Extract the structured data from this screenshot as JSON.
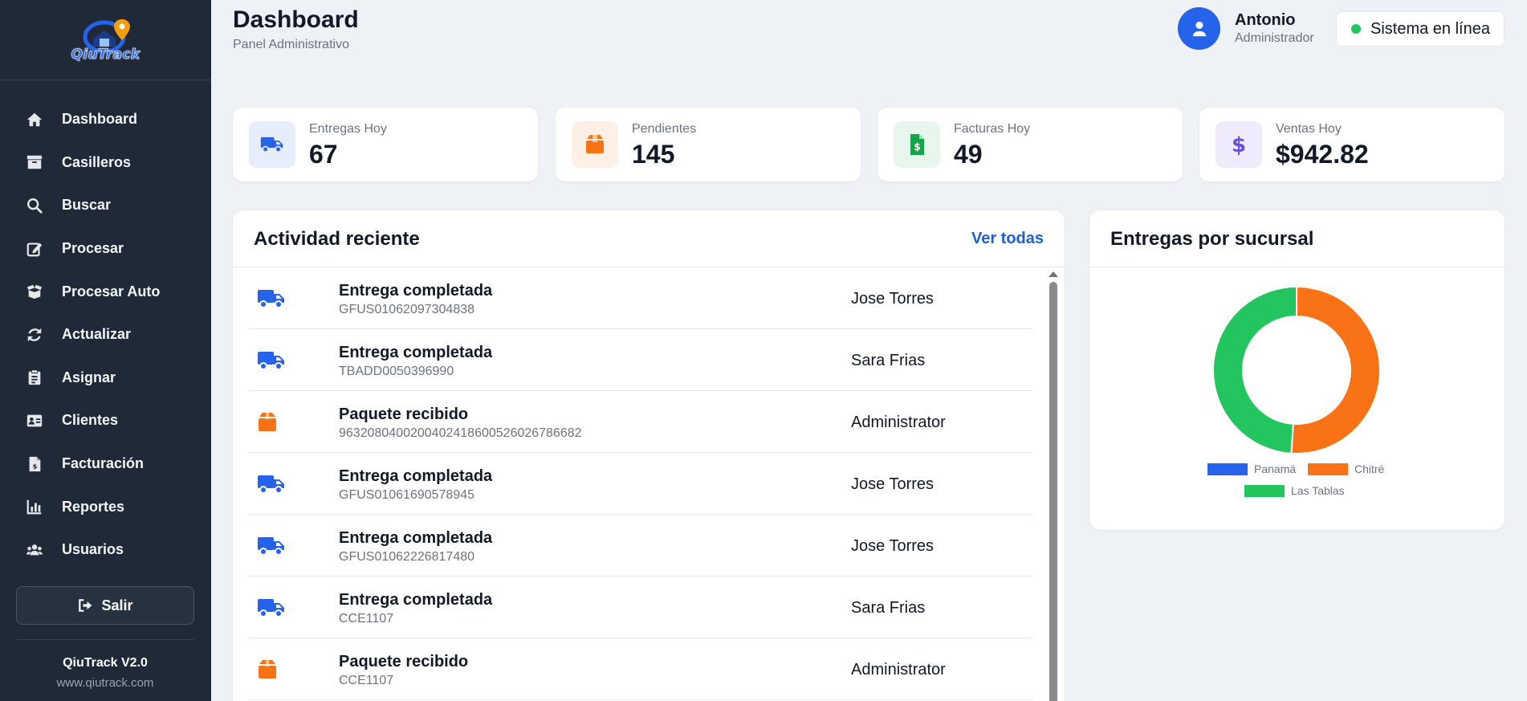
{
  "brand": {
    "logo_text": "QiuTrack"
  },
  "sidebar": {
    "items": [
      {
        "label": "Dashboard",
        "icon": "home-icon"
      },
      {
        "label": "Casilleros",
        "icon": "archive-icon"
      },
      {
        "label": "Buscar",
        "icon": "search-icon"
      },
      {
        "label": "Procesar",
        "icon": "edit-icon"
      },
      {
        "label": "Procesar Auto",
        "icon": "box-open-icon"
      },
      {
        "label": "Actualizar",
        "icon": "refresh-icon"
      },
      {
        "label": "Asignar",
        "icon": "clipboard-icon"
      },
      {
        "label": "Clientes",
        "icon": "id-card-icon"
      },
      {
        "label": "Facturación",
        "icon": "invoice-icon"
      },
      {
        "label": "Reportes",
        "icon": "chart-bar-icon"
      },
      {
        "label": "Usuarios",
        "icon": "users-icon"
      }
    ],
    "logout_label": "Salir",
    "version": "QiuTrack V2.0",
    "website": "www.qiutrack.com"
  },
  "header": {
    "title": "Dashboard",
    "subtitle": "Panel Administrativo",
    "user_name": "Antonio",
    "user_role": "Administrador",
    "status": "Sistema en línea"
  },
  "stats": [
    {
      "label": "Entregas Hoy",
      "value": "67",
      "icon": "truck-icon",
      "color": "#2563eb",
      "bg": "#e6eefc"
    },
    {
      "label": "Pendientes",
      "value": "145",
      "icon": "box-icon",
      "color": "#f97316",
      "bg": "#fff0e6"
    },
    {
      "label": "Facturas Hoy",
      "value": "49",
      "icon": "invoice-dollar-icon",
      "color": "#16a34a",
      "bg": "#e8f7ed"
    },
    {
      "label": "Ventas Hoy",
      "value": "$942.82",
      "icon": "dollar-icon",
      "color": "#6d4fe0",
      "bg": "#efebfd"
    }
  ],
  "activity": {
    "title": "Actividad reciente",
    "view_all": "Ver todas",
    "rows": [
      {
        "type": "delivery",
        "title": "Entrega completada",
        "code": "GFUS01062097304838",
        "user": "Jose Torres"
      },
      {
        "type": "delivery",
        "title": "Entrega completada",
        "code": "TBADD0050396990",
        "user": "Sara Frias"
      },
      {
        "type": "package",
        "title": "Paquete recibido",
        "code": "963208040020040241860052602678668​2",
        "user": "Administrator"
      },
      {
        "type": "delivery",
        "title": "Entrega completada",
        "code": "GFUS01061690578945",
        "user": "Jose Torres"
      },
      {
        "type": "delivery",
        "title": "Entrega completada",
        "code": "GFUS01062226817480",
        "user": "Jose Torres"
      },
      {
        "type": "delivery",
        "title": "Entrega completada",
        "code": "CCE1107",
        "user": "Sara Frias"
      },
      {
        "type": "package",
        "title": "Paquete recibido",
        "code": "CCE1107",
        "user": "Administrator"
      }
    ],
    "colors": {
      "delivery": "#2563eb",
      "package": "#f97316"
    }
  },
  "chart_panel": {
    "title": "Entregas por sucursal"
  },
  "chart_data": {
    "type": "pie",
    "categories": [
      "Panamá",
      "Chitré",
      "Las Tablas"
    ],
    "values": [
      0,
      51,
      49
    ],
    "colors": [
      "#2563eb",
      "#f97316",
      "#22c55e"
    ],
    "legend": "bottom"
  }
}
